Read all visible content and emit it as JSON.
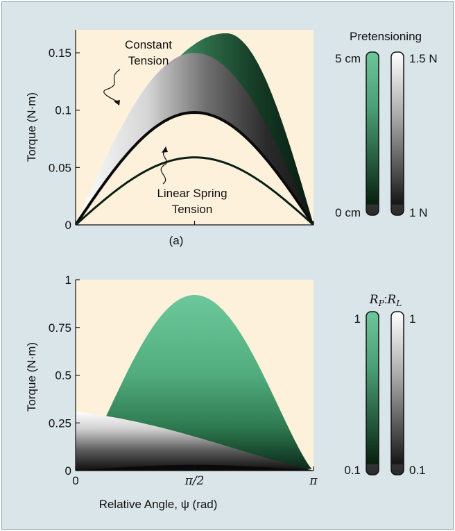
{
  "chart_data": [
    {
      "type": "area",
      "panel_label": "(a)",
      "ylabel": "Torque (N·m)",
      "xlim": [
        0,
        3.1416
      ],
      "ylim": [
        0,
        0.17
      ],
      "y_ticks": [
        "0",
        "0.05",
        "0.1",
        "0.15"
      ],
      "y_tick_values": [
        0,
        0.05,
        0.1,
        0.15
      ],
      "annotations": [
        {
          "lines": [
            "Constant",
            "Tension"
          ]
        },
        {
          "lines": [
            "Linear Spring",
            "Tension"
          ]
        }
      ],
      "legend_title": "Pretensioning",
      "colorbars": [
        {
          "name": "Linear Spring Tension (green)",
          "top_label": "5 cm",
          "bottom_label": "0 cm",
          "color_top": "#6cc79a",
          "color_bottom": "#061a10"
        },
        {
          "name": "Constant Tension (gray)",
          "top_label": "1.5 N",
          "bottom_label": "1 N",
          "color_top": "#ffffff",
          "color_bottom": "#111111"
        }
      ],
      "series": [
        {
          "style": "green",
          "peak_angle": 1.99,
          "envelope_low": 0.098,
          "envelope_high": 0.167
        },
        {
          "style": "gray",
          "peak_angle": 1.57,
          "envelope_low": 0.098,
          "envelope_high": 0.15
        }
      ]
    },
    {
      "type": "area",
      "xlabel": "Relative Angle, ψ (rad)",
      "ylabel": "Torque (N·m)",
      "xlim": [
        0,
        3.1416
      ],
      "ylim": [
        0,
        1
      ],
      "x_ticks": [
        "0",
        "π/2",
        "π"
      ],
      "x_tick_values": [
        0,
        1.5708,
        3.1416
      ],
      "y_ticks": [
        "0",
        "0.25",
        "0.5",
        "0.75",
        "1"
      ],
      "y_tick_values": [
        0,
        0.25,
        0.5,
        0.75,
        1
      ],
      "legend_title": "RP:RL",
      "colorbars": [
        {
          "name": "green",
          "top_label": "1",
          "bottom_label": "0.1",
          "color_top": "#6cc79a",
          "color_bottom": "#061a10"
        },
        {
          "name": "gray",
          "top_label": "1",
          "bottom_label": "0.1",
          "color_top": "#ffffff",
          "color_bottom": "#111111"
        }
      ],
      "series": [
        {
          "style": "green",
          "peak_angle": 1.57,
          "envelope_high": 0.92
        },
        {
          "style": "gray",
          "value_at_zero": 0.31,
          "envelope_high": 0.31
        }
      ]
    }
  ],
  "colors": {
    "background": "#d9e5e9",
    "plot_area": "#fdf1dc",
    "green_light": "#6cc79a",
    "green_dark": "#061a10",
    "gray_light": "#ffffff",
    "gray_dark": "#111111"
  }
}
